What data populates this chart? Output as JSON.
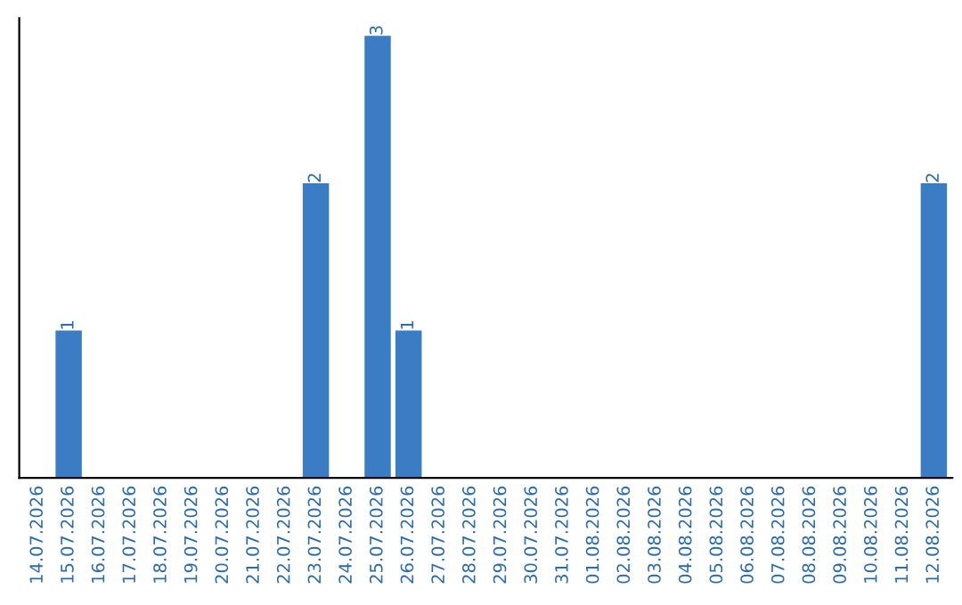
{
  "chart_data": {
    "type": "bar",
    "categories": [
      "14.07.2026",
      "15.07.2026",
      "16.07.2026",
      "17.07.2026",
      "18.07.2026",
      "19.07.2026",
      "20.07.2026",
      "21.07.2026",
      "22.07.2026",
      "23.07.2026",
      "24.07.2026",
      "25.07.2026",
      "26.07.2026",
      "27.07.2026",
      "28.07.2026",
      "29.07.2026",
      "30.07.2026",
      "31.07.2026",
      "01.08.2026",
      "02.08.2026",
      "03.08.2026",
      "04.08.2026",
      "05.08.2026",
      "06.08.2026",
      "07.08.2026",
      "08.08.2026",
      "09.08.2026",
      "10.08.2026",
      "11.08.2026",
      "12.08.2026"
    ],
    "values": [
      0,
      1,
      0,
      0,
      0,
      0,
      0,
      0,
      0,
      2,
      0,
      3,
      1,
      0,
      0,
      0,
      0,
      0,
      0,
      0,
      0,
      0,
      0,
      0,
      0,
      0,
      0,
      0,
      0,
      2
    ],
    "value_labels": [
      null,
      "1",
      null,
      null,
      null,
      null,
      null,
      null,
      null,
      "2",
      null,
      "3",
      "1",
      null,
      null,
      null,
      null,
      null,
      null,
      null,
      null,
      null,
      null,
      null,
      null,
      null,
      null,
      null,
      null,
      "2"
    ],
    "color": "#3b7dc4",
    "tick_labels": "x",
    "grid": false,
    "legend": false
  }
}
